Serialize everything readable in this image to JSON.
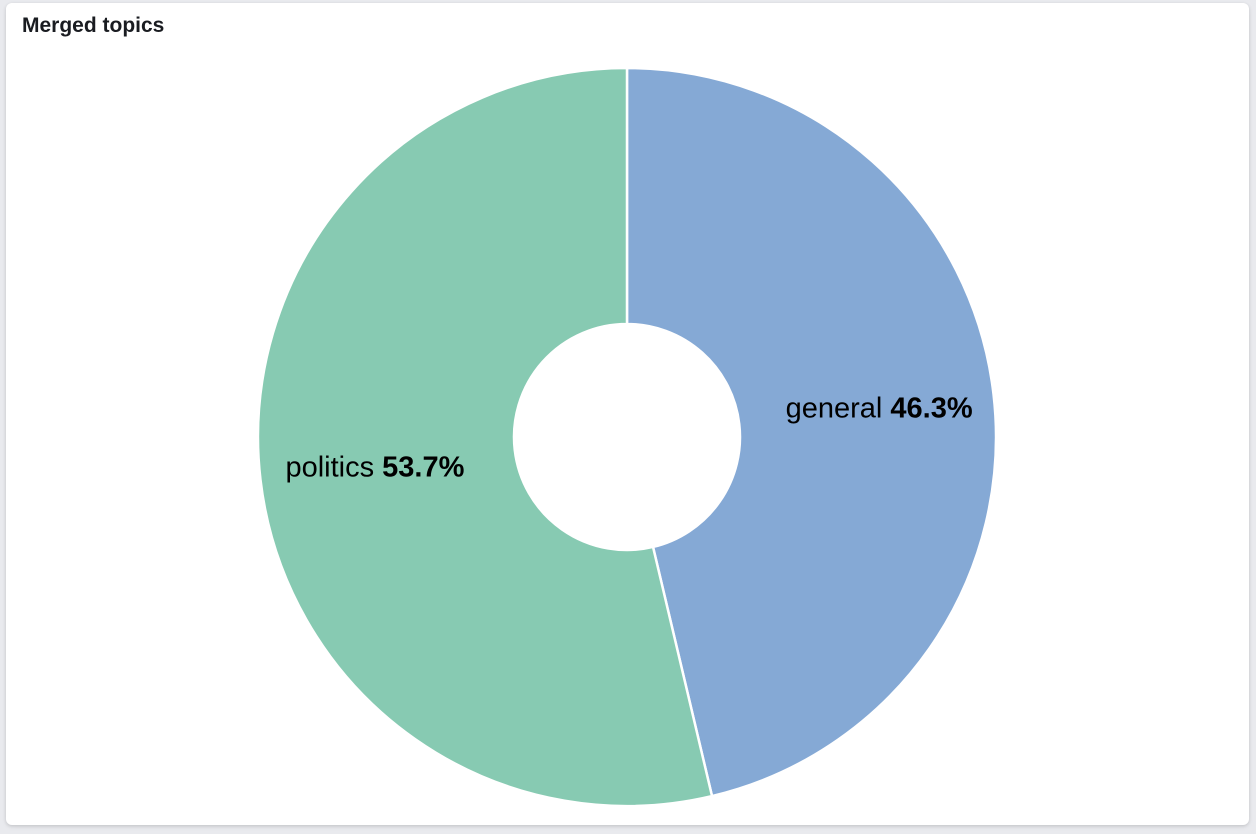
{
  "panel": {
    "title": "Merged topics"
  },
  "chart_data": {
    "type": "pie",
    "donut": true,
    "slices": [
      {
        "label": "general",
        "percent_label": "46.3%",
        "value": 46.3,
        "color": "#85a9d5"
      },
      {
        "label": "politics",
        "percent_label": "53.7%",
        "value": 53.7,
        "color": "#87cab2"
      }
    ],
    "legend": "none",
    "slice_border_color": "#ffffff"
  }
}
